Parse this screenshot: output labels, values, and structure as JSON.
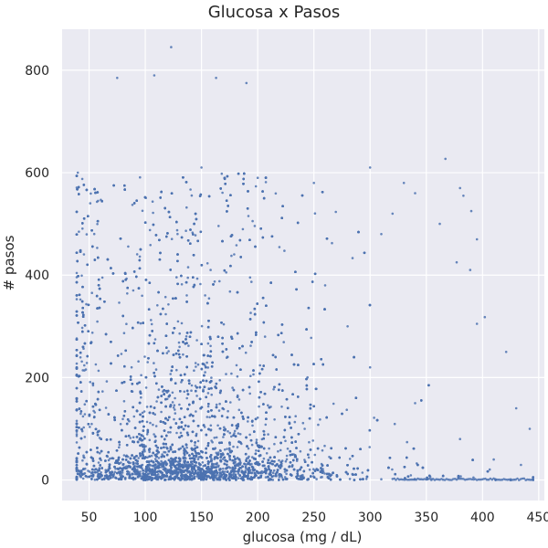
{
  "chart_data": {
    "type": "scatter",
    "title": "Glucosa x Pasos",
    "xlabel": "glucosa (mg / dL)",
    "ylabel": "# pasos",
    "xlim": [
      26,
      455
    ],
    "ylim": [
      -40,
      880
    ],
    "xticks": [
      50,
      100,
      150,
      200,
      250,
      300,
      350,
      400,
      450
    ],
    "yticks": [
      0,
      200,
      400,
      600,
      800
    ],
    "xtick_labels": [
      "50",
      "100",
      "150",
      "200",
      "250",
      "300",
      "350",
      "400",
      "450"
    ],
    "ytick_labels": [
      "0",
      "200",
      "400",
      "600",
      "800"
    ],
    "grid": true,
    "colors": {
      "background": "#eaeaf2",
      "grid": "#ffffff",
      "point": "#4c72b0"
    },
    "series": [
      {
        "x_range": [
          39,
          445
        ],
        "y_range": [
          0,
          845
        ],
        "sample_points": [
          [
            123,
            845
          ],
          [
            108,
            790
          ],
          [
            163,
            785
          ],
          [
            75,
            785
          ],
          [
            190,
            775
          ],
          [
            367,
            627
          ],
          [
            380,
            570
          ],
          [
            383,
            555
          ],
          [
            390,
            525
          ],
          [
            395,
            470
          ],
          [
            377,
            425
          ],
          [
            389,
            410
          ],
          [
            362,
            500
          ],
          [
            402,
            318
          ],
          [
            395,
            305
          ],
          [
            421,
            250
          ],
          [
            430,
            140
          ],
          [
            442,
            100
          ],
          [
            445,
            0
          ],
          [
            40,
            600
          ],
          [
            58,
            545
          ],
          [
            150,
            610
          ],
          [
            200,
            590
          ],
          [
            250,
            580
          ],
          [
            300,
            610
          ],
          [
            330,
            580
          ],
          [
            320,
            520
          ],
          [
            340,
            560
          ],
          [
            310,
            480
          ],
          [
            260,
            380
          ],
          [
            280,
            300
          ],
          [
            300,
            220
          ],
          [
            340,
            150
          ],
          [
            380,
            80
          ],
          [
            410,
            40
          ]
        ]
      }
    ]
  }
}
